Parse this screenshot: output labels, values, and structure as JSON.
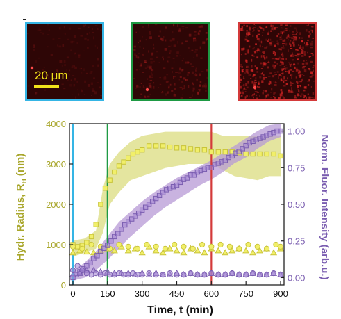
{
  "scale_bar": {
    "label": "20 μm",
    "color": "#f2e21b"
  },
  "panels": [
    {
      "id": "t0",
      "border": "#35b5e5",
      "brightness": 0.15
    },
    {
      "id": "t150",
      "border": "#1e9a44",
      "brightness": 0.35
    },
    {
      "id": "t600",
      "border": "#d43a3a",
      "brightness": 0.9
    }
  ],
  "chart_data": {
    "type": "scatter",
    "xlabel": "Time, t (min)",
    "ylabel_left": "Hydr. Radius, R",
    "ylabel_left_sub": "H",
    "ylabel_left_unit": "(nm)",
    "ylabel_right": "Norm. Fluor. Intensity (arb.u.)",
    "xlim": [
      -15,
      915
    ],
    "ylim_left": [
      0,
      4000
    ],
    "ylim_right": [
      -0.05,
      1.05
    ],
    "xticks": [
      0,
      150,
      300,
      450,
      600,
      750,
      900
    ],
    "yticks_left": [
      0,
      1000,
      2000,
      3000,
      4000
    ],
    "yticks_right": [
      0.0,
      0.25,
      0.5,
      0.75,
      1.0
    ],
    "yticks_right_labels": [
      "0.00",
      "0.25",
      "0.50",
      "0.75",
      "1.00"
    ],
    "vlines": [
      {
        "x": 0,
        "color": "#35b5e5"
      },
      {
        "x": 150,
        "color": "#1e9a44"
      },
      {
        "x": 600,
        "color": "#d43a3a"
      }
    ],
    "colors": {
      "yellow": "#d7d84b",
      "yellow_fill": "#dfe08e",
      "purple": "#8e6fc0",
      "purple_fill": "#b79ad6"
    },
    "series": [
      {
        "axis": "left",
        "marker": "square",
        "color": "yellow",
        "x": [
          0,
          20,
          40,
          60,
          80,
          100,
          120,
          140,
          160,
          180,
          200,
          220,
          240,
          260,
          280,
          300,
          330,
          360,
          390,
          420,
          450,
          480,
          510,
          540,
          570,
          600,
          630,
          660,
          690,
          720,
          750,
          780,
          810,
          840,
          870,
          900
        ],
        "y": [
          1000,
          950,
          980,
          1050,
          1200,
          1500,
          2000,
          2400,
          2600,
          2800,
          2950,
          3050,
          3150,
          3250,
          3300,
          3350,
          3450,
          3450,
          3450,
          3420,
          3400,
          3400,
          3380,
          3350,
          3350,
          3300,
          3300,
          3300,
          3300,
          3280,
          3250,
          3250,
          3250,
          3250,
          3250,
          3200
        ]
      },
      {
        "axis": "left",
        "marker": "triangle",
        "color": "yellow",
        "x": [
          0,
          30,
          60,
          90,
          120,
          150,
          180,
          210,
          240,
          270,
          300,
          330,
          360,
          390,
          420,
          450,
          480,
          510,
          540,
          570,
          600,
          630,
          660,
          690,
          720,
          750,
          780,
          810,
          840,
          870,
          900
        ],
        "y": [
          800,
          850,
          820,
          800,
          850,
          900,
          850,
          950,
          850,
          900,
          800,
          950,
          850,
          800,
          900,
          850,
          800,
          900,
          850,
          800,
          900,
          850,
          800,
          850,
          900,
          850,
          800,
          850,
          900,
          800,
          900
        ]
      },
      {
        "axis": "left",
        "marker": "circle",
        "color": "yellow",
        "x": [
          0,
          40,
          80,
          120,
          160,
          200,
          240,
          280,
          320,
          360,
          400,
          440,
          480,
          520,
          560,
          600,
          640,
          680,
          720,
          760,
          800,
          840,
          880,
          900
        ],
        "y": [
          950,
          900,
          1000,
          950,
          900,
          1000,
          950,
          900,
          1000,
          950,
          900,
          1000,
          950,
          900,
          1000,
          950,
          1000,
          950,
          900,
          1000,
          950,
          900,
          1000,
          950
        ]
      },
      {
        "axis": "right",
        "marker": "square",
        "color": "purple",
        "x": [
          0,
          15,
          30,
          45,
          60,
          75,
          90,
          105,
          120,
          135,
          150,
          165,
          180,
          195,
          210,
          225,
          240,
          255,
          270,
          285,
          300,
          315,
          330,
          345,
          360,
          375,
          390,
          405,
          420,
          435,
          450,
          465,
          480,
          495,
          510,
          525,
          540,
          555,
          570,
          585,
          600,
          615,
          630,
          645,
          660,
          675,
          690,
          705,
          720,
          735,
          750,
          765,
          780,
          795,
          810,
          825,
          840,
          855,
          870,
          885,
          900
        ],
        "y": [
          0.0,
          0.02,
          0.04,
          0.06,
          0.08,
          0.1,
          0.13,
          0.15,
          0.18,
          0.2,
          0.22,
          0.25,
          0.28,
          0.3,
          0.33,
          0.36,
          0.38,
          0.4,
          0.42,
          0.44,
          0.46,
          0.48,
          0.5,
          0.52,
          0.54,
          0.56,
          0.58,
          0.6,
          0.61,
          0.62,
          0.63,
          0.65,
          0.67,
          0.68,
          0.7,
          0.7,
          0.72,
          0.73,
          0.74,
          0.75,
          0.75,
          0.77,
          0.78,
          0.79,
          0.8,
          0.82,
          0.83,
          0.85,
          0.86,
          0.88,
          0.9,
          0.92,
          0.93,
          0.94,
          0.95,
          0.96,
          0.97,
          0.98,
          0.99,
          1.0,
          1.0
        ]
      },
      {
        "axis": "right",
        "marker": "triangle",
        "color": "purple",
        "x": [
          0,
          30,
          60,
          90,
          120,
          150,
          180,
          210,
          240,
          270,
          300,
          330,
          360,
          390,
          420,
          450,
          480,
          510,
          540,
          570,
          600,
          630,
          660,
          690,
          720,
          750,
          780,
          810,
          840,
          870,
          900
        ],
        "y": [
          0.02,
          0.03,
          0.05,
          0.05,
          0.04,
          0.04,
          0.03,
          0.03,
          0.03,
          0.02,
          0.03,
          0.02,
          0.03,
          0.02,
          0.02,
          0.03,
          0.02,
          0.03,
          0.02,
          0.02,
          0.03,
          0.02,
          0.02,
          0.03,
          0.02,
          0.02,
          0.03,
          0.02,
          0.02,
          0.03,
          0.02
        ]
      },
      {
        "axis": "right",
        "marker": "circle",
        "color": "purple",
        "x": [
          0,
          20,
          40,
          60,
          80,
          100,
          120,
          140,
          160,
          180,
          200,
          220,
          240,
          260,
          280,
          300,
          330,
          360,
          390,
          420,
          450,
          480,
          510,
          540,
          570,
          600,
          630,
          660,
          690,
          720,
          750,
          780,
          810,
          840,
          870,
          900
        ],
        "y": [
          0.05,
          0.08,
          0.05,
          0.03,
          0.02,
          0.03,
          0.02,
          0.03,
          0.02,
          0.02,
          0.03,
          0.02,
          0.02,
          0.03,
          0.02,
          0.02,
          0.03,
          0.02,
          0.02,
          0.03,
          0.02,
          0.02,
          0.03,
          0.02,
          0.02,
          0.03,
          0.02,
          0.02,
          0.03,
          0.02,
          0.02,
          0.03,
          0.02,
          0.02,
          0.03,
          0.02
        ]
      }
    ],
    "bands": [
      {
        "axis": "left",
        "color": "yellow_fill",
        "x": [
          0,
          50,
          100,
          130,
          160,
          200,
          250,
          300,
          350,
          400,
          450,
          500,
          550,
          600,
          650,
          700,
          750,
          800,
          850,
          900
        ],
        "low": [
          700,
          800,
          900,
          1300,
          2000,
          2300,
          2600,
          2700,
          2800,
          2900,
          2950,
          3000,
          3000,
          3000,
          2850,
          2700,
          2650,
          2600,
          2700,
          2700
        ],
        "high": [
          1100,
          1150,
          1350,
          2400,
          3000,
          3300,
          3550,
          3700,
          3750,
          3800,
          3800,
          3800,
          3800,
          3800,
          3700,
          3700,
          3700,
          3700,
          3700,
          3700
        ]
      },
      {
        "axis": "right",
        "color": "purple_fill",
        "x": [
          0,
          50,
          100,
          150,
          200,
          250,
          300,
          350,
          400,
          450,
          500,
          550,
          600,
          650,
          700,
          750,
          800,
          850,
          900
        ],
        "low": [
          -0.02,
          0.0,
          0.05,
          0.12,
          0.2,
          0.28,
          0.35,
          0.42,
          0.48,
          0.53,
          0.58,
          0.63,
          0.67,
          0.72,
          0.78,
          0.82,
          0.88,
          0.93,
          0.96
        ],
        "high": [
          0.05,
          0.1,
          0.18,
          0.28,
          0.38,
          0.45,
          0.52,
          0.58,
          0.63,
          0.68,
          0.72,
          0.76,
          0.8,
          0.85,
          0.9,
          0.95,
          1.0,
          1.04,
          1.05
        ]
      }
    ]
  }
}
